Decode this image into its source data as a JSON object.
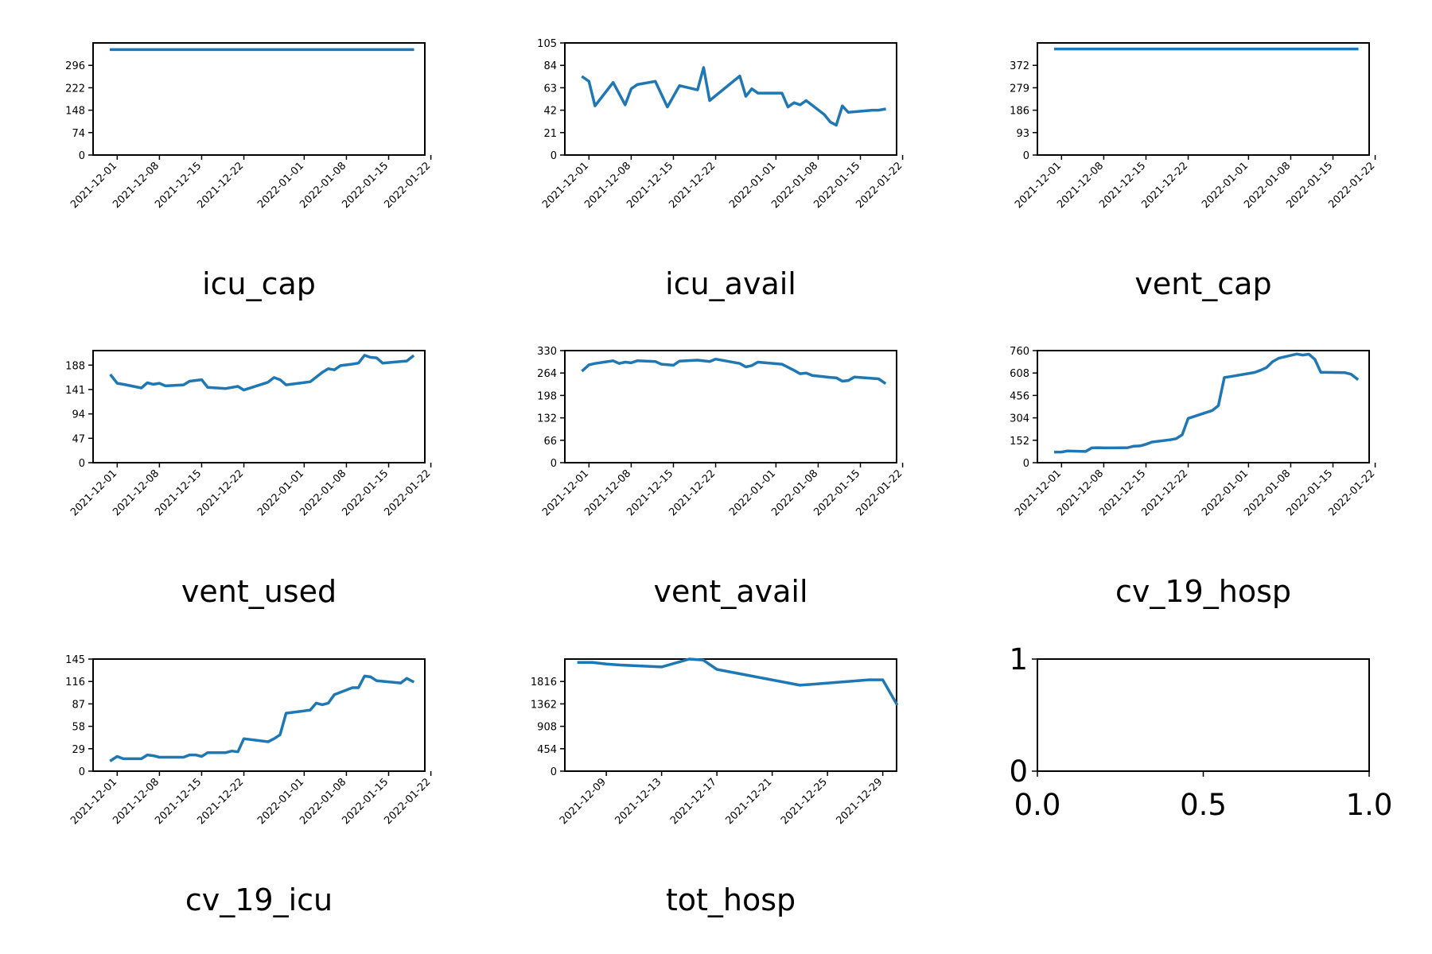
{
  "chart_data": [
    {
      "type": "line",
      "xlabel": "icu_cap",
      "ylim": [
        0,
        370
      ],
      "yticks": [
        0,
        74,
        148,
        222,
        296
      ],
      "xlim": [
        "2021-11-27",
        "2022-01-21"
      ],
      "xticks": [
        "2021-12-01",
        "2021-12-08",
        "2021-12-15",
        "2021-12-22",
        "2022-01-01",
        "2022-01-08",
        "2022-01-15",
        "2022-01-22"
      ],
      "series": [
        {
          "color": "#1f77b4",
          "points": [
            [
              "2021-11-30",
              348
            ],
            [
              "2022-01-19",
              348
            ]
          ]
        }
      ]
    },
    {
      "type": "line",
      "xlabel": "icu_avail",
      "ylim": [
        0,
        105
      ],
      "yticks": [
        0,
        21,
        42,
        63,
        84,
        105
      ],
      "xlim": [
        "2021-11-27",
        "2022-01-21"
      ],
      "xticks": [
        "2021-12-01",
        "2021-12-08",
        "2021-12-15",
        "2021-12-22",
        "2022-01-01",
        "2022-01-08",
        "2022-01-15",
        "2022-01-22"
      ],
      "series": [
        {
          "color": "#1f77b4",
          "points": [
            [
              "2021-11-30",
              73
            ],
            [
              "2021-12-01",
              69
            ],
            [
              "2021-12-02",
              46
            ],
            [
              "2021-12-05",
              68
            ],
            [
              "2021-12-07",
              47
            ],
            [
              "2021-12-08",
              62
            ],
            [
              "2021-12-09",
              66
            ],
            [
              "2021-12-12",
              69
            ],
            [
              "2021-12-14",
              45
            ],
            [
              "2021-12-16",
              65
            ],
            [
              "2021-12-19",
              61
            ],
            [
              "2021-12-20",
              82
            ],
            [
              "2021-12-21",
              51
            ],
            [
              "2021-12-26",
              74
            ],
            [
              "2021-12-27",
              55
            ],
            [
              "2021-12-28",
              62
            ],
            [
              "2021-12-29",
              58
            ],
            [
              "2022-01-02",
              58
            ],
            [
              "2022-01-03",
              45
            ],
            [
              "2022-01-04",
              49
            ],
            [
              "2022-01-05",
              47
            ],
            [
              "2022-01-06",
              51
            ],
            [
              "2022-01-09",
              38
            ],
            [
              "2022-01-10",
              31
            ],
            [
              "2022-01-11",
              28
            ],
            [
              "2022-01-12",
              46
            ],
            [
              "2022-01-13",
              40
            ],
            [
              "2022-01-17",
              42
            ],
            [
              "2022-01-18",
              42
            ],
            [
              "2022-01-19",
              43
            ]
          ]
        }
      ]
    },
    {
      "type": "line",
      "xlabel": "vent_cap",
      "ylim": [
        0,
        465
      ],
      "yticks": [
        0,
        93,
        186,
        279,
        372
      ],
      "xlim": [
        "2021-11-27",
        "2022-01-21"
      ],
      "xticks": [
        "2021-12-01",
        "2021-12-08",
        "2021-12-15",
        "2021-12-22",
        "2022-01-01",
        "2022-01-08",
        "2022-01-15",
        "2022-01-22"
      ],
      "series": [
        {
          "color": "#1f77b4",
          "points": [
            [
              "2021-11-30",
              440
            ],
            [
              "2022-01-19",
              440
            ]
          ]
        }
      ]
    },
    {
      "type": "line",
      "xlabel": "vent_used",
      "ylim": [
        0,
        216
      ],
      "yticks": [
        0,
        47,
        94,
        141,
        188
      ],
      "xlim": [
        "2021-11-27",
        "2022-01-21"
      ],
      "xticks": [
        "2021-12-01",
        "2021-12-08",
        "2021-12-15",
        "2021-12-22",
        "2022-01-01",
        "2022-01-08",
        "2022-01-15",
        "2022-01-22"
      ],
      "series": [
        {
          "color": "#1f77b4",
          "points": [
            [
              "2021-11-30",
              168
            ],
            [
              "2021-12-01",
              153
            ],
            [
              "2021-12-02",
              151
            ],
            [
              "2021-12-05",
              144
            ],
            [
              "2021-12-06",
              154
            ],
            [
              "2021-12-07",
              151
            ],
            [
              "2021-12-08",
              153
            ],
            [
              "2021-12-09",
              148
            ],
            [
              "2021-12-12",
              150
            ],
            [
              "2021-12-13",
              157
            ],
            [
              "2021-12-15",
              160
            ],
            [
              "2021-12-16",
              145
            ],
            [
              "2021-12-19",
              143
            ],
            [
              "2021-12-21",
              147
            ],
            [
              "2021-12-22",
              140
            ],
            [
              "2021-12-26",
              155
            ],
            [
              "2021-12-27",
              164
            ],
            [
              "2021-12-28",
              160
            ],
            [
              "2021-12-29",
              150
            ],
            [
              "2022-01-02",
              156
            ],
            [
              "2022-01-04",
              174
            ],
            [
              "2022-01-05",
              181
            ],
            [
              "2022-01-06",
              179
            ],
            [
              "2022-01-07",
              187
            ],
            [
              "2022-01-09",
              190
            ],
            [
              "2022-01-10",
              192
            ],
            [
              "2022-01-11",
              207
            ],
            [
              "2022-01-12",
              203
            ],
            [
              "2022-01-13",
              202
            ],
            [
              "2022-01-14",
              192
            ],
            [
              "2022-01-18",
              196
            ],
            [
              "2022-01-19",
              205
            ]
          ]
        }
      ]
    },
    {
      "type": "line",
      "xlabel": "vent_avail",
      "ylim": [
        0,
        330
      ],
      "yticks": [
        0,
        66,
        132,
        198,
        264,
        330
      ],
      "xlim": [
        "2021-11-27",
        "2022-01-21"
      ],
      "xticks": [
        "2021-12-01",
        "2021-12-08",
        "2021-12-15",
        "2021-12-22",
        "2022-01-01",
        "2022-01-08",
        "2022-01-15",
        "2022-01-22"
      ],
      "series": [
        {
          "color": "#1f77b4",
          "points": [
            [
              "2021-11-30",
              272
            ],
            [
              "2021-12-01",
              288
            ],
            [
              "2021-12-02",
              292
            ],
            [
              "2021-12-05",
              300
            ],
            [
              "2021-12-06",
              292
            ],
            [
              "2021-12-07",
              296
            ],
            [
              "2021-12-08",
              294
            ],
            [
              "2021-12-09",
              300
            ],
            [
              "2021-12-12",
              298
            ],
            [
              "2021-12-13",
              290
            ],
            [
              "2021-12-15",
              287
            ],
            [
              "2021-12-16",
              299
            ],
            [
              "2021-12-19",
              302
            ],
            [
              "2021-12-21",
              298
            ],
            [
              "2021-12-22",
              305
            ],
            [
              "2021-12-26",
              292
            ],
            [
              "2021-12-27",
              282
            ],
            [
              "2021-12-28",
              286
            ],
            [
              "2021-12-29",
              296
            ],
            [
              "2022-01-02",
              290
            ],
            [
              "2022-01-04",
              272
            ],
            [
              "2022-01-05",
              262
            ],
            [
              "2022-01-06",
              264
            ],
            [
              "2022-01-07",
              257
            ],
            [
              "2022-01-09",
              253
            ],
            [
              "2022-01-10",
              251
            ],
            [
              "2022-01-11",
              250
            ],
            [
              "2022-01-12",
              240
            ],
            [
              "2022-01-13",
              242
            ],
            [
              "2022-01-14",
              252
            ],
            [
              "2022-01-18",
              247
            ],
            [
              "2022-01-19",
              235
            ]
          ]
        }
      ]
    },
    {
      "type": "line",
      "xlabel": "cv_19_hosp",
      "ylim": [
        0,
        760
      ],
      "yticks": [
        0,
        152,
        304,
        456,
        608,
        760
      ],
      "xlim": [
        "2021-11-27",
        "2022-01-21"
      ],
      "xticks": [
        "2021-12-01",
        "2021-12-08",
        "2021-12-15",
        "2021-12-22",
        "2022-01-01",
        "2022-01-08",
        "2022-01-15",
        "2022-01-22"
      ],
      "series": [
        {
          "color": "#1f77b4",
          "points": [
            [
              "2021-11-30",
              72
            ],
            [
              "2021-12-01",
              72
            ],
            [
              "2021-12-02",
              80
            ],
            [
              "2021-12-05",
              76
            ],
            [
              "2021-12-06",
              100
            ],
            [
              "2021-12-07",
              102
            ],
            [
              "2021-12-08",
              100
            ],
            [
              "2021-12-09",
              100
            ],
            [
              "2021-12-12",
              102
            ],
            [
              "2021-12-13",
              112
            ],
            [
              "2021-12-14",
              114
            ],
            [
              "2021-12-15",
              125
            ],
            [
              "2021-12-16",
              140
            ],
            [
              "2021-12-19",
              155
            ],
            [
              "2021-12-20",
              163
            ],
            [
              "2021-12-21",
              189
            ],
            [
              "2021-12-22",
              300
            ],
            [
              "2021-12-26",
              354
            ],
            [
              "2021-12-27",
              387
            ],
            [
              "2021-12-28",
              578
            ],
            [
              "2021-12-29",
              584
            ],
            [
              "2022-01-02",
              612
            ],
            [
              "2022-01-03",
              627
            ],
            [
              "2022-01-04",
              645
            ],
            [
              "2022-01-05",
              685
            ],
            [
              "2022-01-06",
              708
            ],
            [
              "2022-01-09",
              737
            ],
            [
              "2022-01-10",
              730
            ],
            [
              "2022-01-11",
              736
            ],
            [
              "2022-01-12",
              700
            ],
            [
              "2022-01-13",
              613
            ],
            [
              "2022-01-17",
              610
            ],
            [
              "2022-01-18",
              600
            ],
            [
              "2022-01-19",
              568
            ]
          ]
        }
      ]
    },
    {
      "type": "line",
      "xlabel": "cv_19_icu",
      "ylim": [
        0,
        145
      ],
      "yticks": [
        0,
        29,
        58,
        87,
        116,
        145
      ],
      "xlim": [
        "2021-11-27",
        "2022-01-21"
      ],
      "xticks": [
        "2021-12-01",
        "2021-12-08",
        "2021-12-15",
        "2021-12-22",
        "2022-01-01",
        "2022-01-08",
        "2022-01-15",
        "2022-01-22"
      ],
      "series": [
        {
          "color": "#1f77b4",
          "points": [
            [
              "2021-11-30",
              14
            ],
            [
              "2021-12-01",
              19
            ],
            [
              "2021-12-02",
              16
            ],
            [
              "2021-12-05",
              16
            ],
            [
              "2021-12-06",
              21
            ],
            [
              "2021-12-07",
              20
            ],
            [
              "2021-12-08",
              18
            ],
            [
              "2021-12-12",
              18
            ],
            [
              "2021-12-13",
              21
            ],
            [
              "2021-12-14",
              21
            ],
            [
              "2021-12-15",
              19
            ],
            [
              "2021-12-16",
              24
            ],
            [
              "2021-12-19",
              24
            ],
            [
              "2021-12-20",
              26
            ],
            [
              "2021-12-21",
              25
            ],
            [
              "2021-12-22",
              42
            ],
            [
              "2021-12-26",
              38
            ],
            [
              "2021-12-27",
              42
            ],
            [
              "2021-12-28",
              47
            ],
            [
              "2021-12-29",
              75
            ],
            [
              "2022-01-02",
              79
            ],
            [
              "2022-01-03",
              88
            ],
            [
              "2022-01-04",
              86
            ],
            [
              "2022-01-05",
              88
            ],
            [
              "2022-01-06",
              99
            ],
            [
              "2022-01-09",
              108
            ],
            [
              "2022-01-10",
              108
            ],
            [
              "2022-01-11",
              123
            ],
            [
              "2022-01-12",
              122
            ],
            [
              "2022-01-13",
              117
            ],
            [
              "2022-01-17",
              114
            ],
            [
              "2022-01-18",
              120
            ],
            [
              "2022-01-19",
              116
            ]
          ]
        }
      ]
    },
    {
      "type": "line",
      "xlabel": "tot_hosp",
      "ylim": [
        0,
        2270
      ],
      "yticks": [
        0,
        454,
        908,
        1362,
        1816
      ],
      "xlim": [
        "2021-12-06",
        "2021-12-30"
      ],
      "xticks": [
        "2021-12-09",
        "2021-12-13",
        "2021-12-17",
        "2021-12-21",
        "2021-12-25",
        "2021-12-29"
      ],
      "series": [
        {
          "color": "#1f77b4",
          "points": [
            [
              "2021-12-07",
              2200
            ],
            [
              "2021-12-08",
              2200
            ],
            [
              "2021-12-09",
              2170
            ],
            [
              "2021-12-10",
              2150
            ],
            [
              "2021-12-13",
              2110
            ],
            [
              "2021-12-15",
              2270
            ],
            [
              "2021-12-16",
              2250
            ],
            [
              "2021-12-17",
              2060
            ],
            [
              "2021-12-23",
              1740
            ],
            [
              "2021-12-28",
              1850
            ],
            [
              "2021-12-29",
              1850
            ],
            [
              "2021-12-30",
              1360
            ]
          ]
        }
      ]
    },
    {
      "type": "line",
      "xlim": [
        0.0,
        1.0
      ],
      "ylim": [
        0,
        1
      ],
      "xtick_labels": [
        "0.0",
        "0.5",
        "1.0"
      ],
      "ytick_labels": [
        "0",
        "1"
      ],
      "series": []
    }
  ]
}
